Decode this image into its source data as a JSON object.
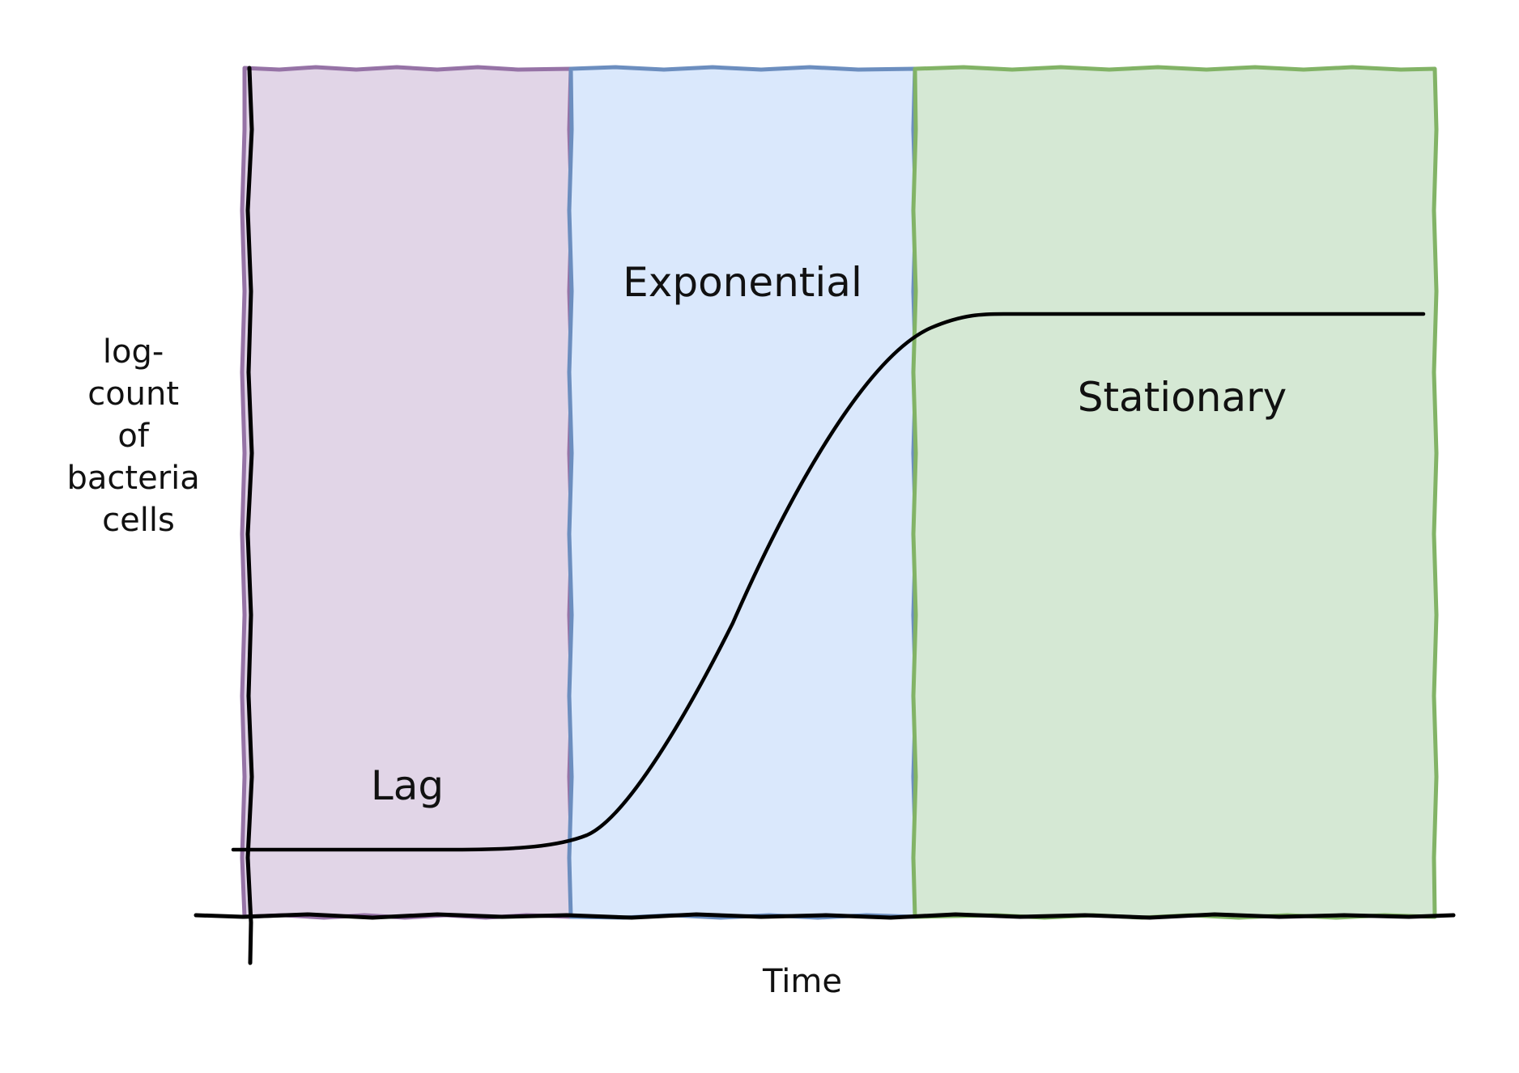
{
  "diagram": {
    "phases": [
      {
        "label": "Lag",
        "fill": "#e1d5e7",
        "stroke": "#9673a6"
      },
      {
        "label": "Exponential",
        "fill": "#dae8fc",
        "stroke": "#6c8ebf"
      },
      {
        "label": "Stationary",
        "fill": "#d5e8d4",
        "stroke": "#82b366"
      }
    ],
    "y_axis_label_lines": [
      "log-",
      "count",
      "of",
      "bacteria",
      "cells"
    ],
    "x_axis_label": "Time",
    "axis_color": "#000000",
    "curve_color": "#000000"
  }
}
